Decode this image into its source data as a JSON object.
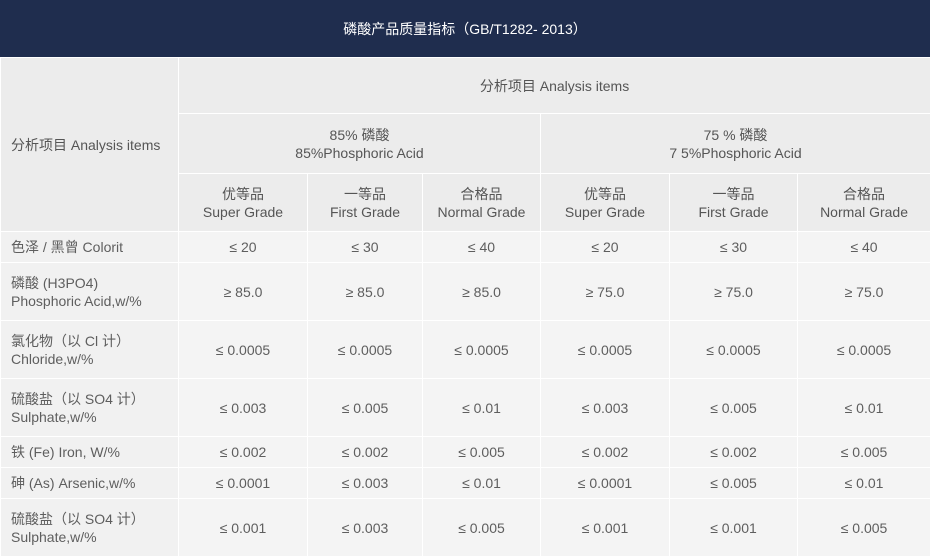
{
  "title": "磷酸产品质量指标（GB/T1282- 2013）",
  "corner_label": "分析项目 Analysis items",
  "header_top": "分析项目 Analysis items",
  "groups": [
    {
      "line1": "85% 磷酸",
      "line2": "85%Phosphoric Acid"
    },
    {
      "line1": "75 % 磷酸",
      "line2": "7 5%Phosphoric Acid"
    }
  ],
  "grades": [
    {
      "cn": "优等品",
      "en": "Super Grade"
    },
    {
      "cn": "一等品",
      "en": "First Grade"
    },
    {
      "cn": "合格品",
      "en": "Normal Grade"
    },
    {
      "cn": "优等品",
      "en": "Super Grade"
    },
    {
      "cn": "一等品",
      "en": "First Grade"
    },
    {
      "cn": "合格品",
      "en": "Normal Grade"
    }
  ],
  "rows": [
    {
      "label1": "色泽 / 黑曾 Colorit",
      "label2": "",
      "values": [
        "≤ 20",
        "≤ 30",
        "≤ 40",
        "≤ 20",
        "≤ 30",
        "≤ 40"
      ]
    },
    {
      "label1": "磷酸 (H3PO4)",
      "label2": "Phosphoric Acid,w/%",
      "values": [
        "≥ 85.0",
        "≥ 85.0",
        "≥ 85.0",
        "≥ 75.0",
        "≥ 75.0",
        "≥ 75.0"
      ]
    },
    {
      "label1": "氯化物（以 Cl 计）",
      "label2": "Chloride,w/%",
      "values": [
        "≤ 0.0005",
        "≤ 0.0005",
        "≤ 0.0005",
        "≤ 0.0005",
        "≤ 0.0005",
        "≤ 0.0005"
      ]
    },
    {
      "label1": "硫酸盐（以 SO4 计）",
      "label2": "Sulphate,w/%",
      "values": [
        "≤ 0.003",
        "≤ 0.005",
        "≤ 0.01",
        "≤ 0.003",
        "≤ 0.005",
        "≤ 0.01"
      ]
    },
    {
      "label1": "铁 (Fe) Iron, W/%",
      "label2": "",
      "values": [
        "≤ 0.002",
        "≤ 0.002",
        "≤ 0.005",
        "≤ 0.002",
        "≤ 0.002",
        "≤ 0.005"
      ]
    },
    {
      "label1": "砷 (As) Arsenic,w/%",
      "label2": "",
      "values": [
        "≤ 0.0001",
        "≤ 0.003",
        "≤ 0.01",
        "≤ 0.0001",
        "≤ 0.005",
        "≤ 0.01"
      ]
    },
    {
      "label1": "硫酸盐（以 SO4 计）",
      "label2": "Sulphate,w/%",
      "values": [
        "≤ 0.001",
        "≤ 0.003",
        "≤ 0.005",
        "≤ 0.001",
        "≤ 0.001",
        "≤ 0.005"
      ]
    }
  ]
}
